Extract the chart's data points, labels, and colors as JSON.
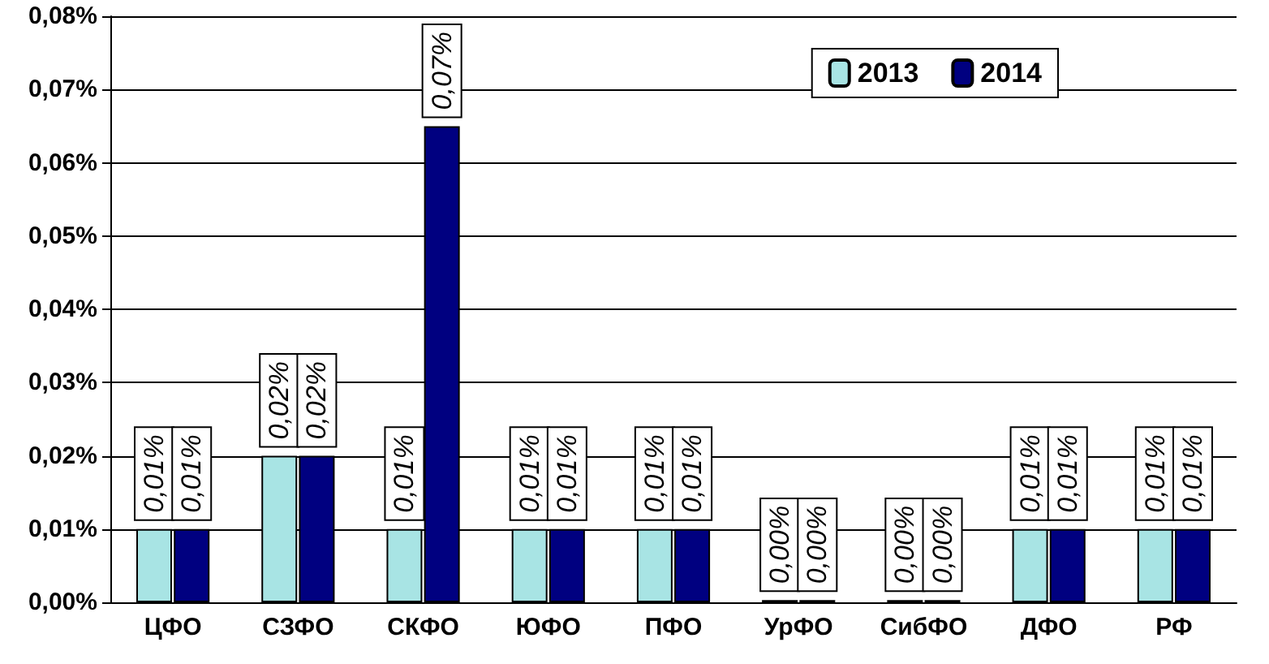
{
  "chart_data": {
    "type": "bar",
    "categories": [
      "ЦФО",
      "СЗФО",
      "СКФО",
      "ЮФО",
      "ПФО",
      "УрФО",
      "СибФО",
      "ДФО",
      "РФ"
    ],
    "series": [
      {
        "name": "2013",
        "color": "#a8e4e4",
        "values": [
          0.01,
          0.02,
          0.01,
          0.01,
          0.01,
          0.0003,
          0.0003,
          0.01,
          0.01
        ],
        "value_labels": [
          "0,01%",
          "0,02%",
          "0,01%",
          "0,01%",
          "0,01%",
          "0,00%",
          "0,00%",
          "0,01%",
          "0,01%"
        ]
      },
      {
        "name": "2014",
        "color": "#000080",
        "values": [
          0.01,
          0.02,
          0.065,
          0.01,
          0.01,
          0.0003,
          0.0003,
          0.01,
          0.01
        ],
        "value_labels": [
          "0,01%",
          "0,02%",
          "0,07%",
          "0,01%",
          "0,01%",
          "0,00%",
          "0,00%",
          "0,01%",
          "0,01%"
        ]
      }
    ],
    "ylim": [
      0,
      0.08
    ],
    "yticks": [
      {
        "value": 0,
        "label": "0,00%"
      },
      {
        "value": 0.01,
        "label": "0,01%"
      },
      {
        "value": 0.02,
        "label": "0,02%"
      },
      {
        "value": 0.03,
        "label": "0,03%"
      },
      {
        "value": 0.04,
        "label": "0,04%"
      },
      {
        "value": 0.05,
        "label": "0,05%"
      },
      {
        "value": 0.06,
        "label": "0,06%"
      },
      {
        "value": 0.07,
        "label": "0,07%"
      },
      {
        "value": 0.08,
        "label": "0,08%"
      }
    ],
    "grid": "y",
    "legend": "top right"
  }
}
